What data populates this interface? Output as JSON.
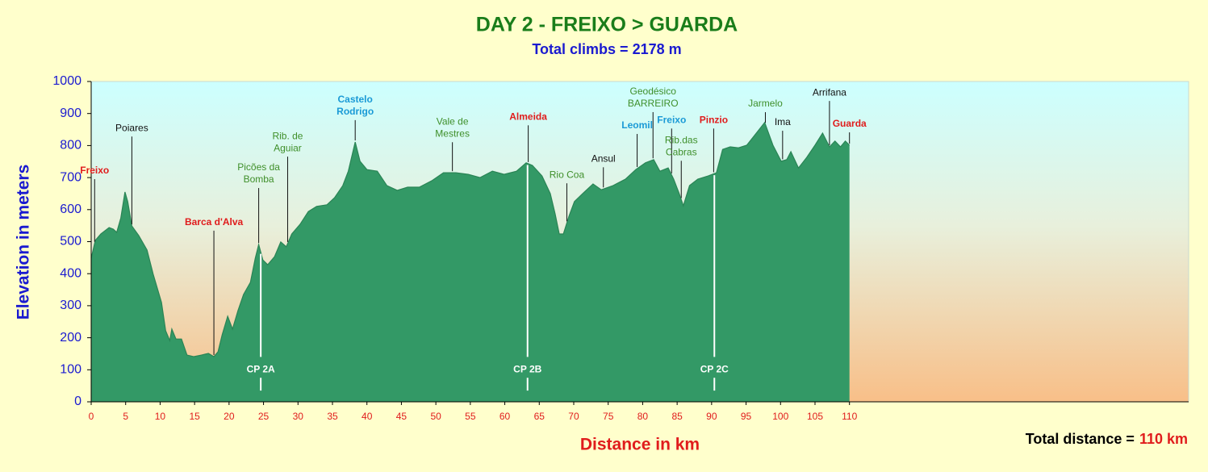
{
  "chart_data": {
    "type": "area",
    "title": "DAY 2 - FREIXO > GUARDA",
    "subtitle": "Total climbs = 2178 m",
    "y_label": "Elevation in meters",
    "x_label": "Distance in km",
    "total_distance_label": "Total distance =",
    "total_distance_value": "110 km",
    "color": "#339966",
    "xlim": [
      0,
      159.2
    ],
    "ylim": [
      0,
      1000
    ],
    "xticks": [
      0,
      5,
      10,
      15,
      20,
      25,
      30,
      35,
      40,
      45,
      50,
      55,
      60,
      65,
      70,
      75,
      80,
      85,
      90,
      95,
      100,
      105,
      110
    ],
    "yticks": [
      0,
      100,
      200,
      300,
      400,
      500,
      600,
      700,
      800,
      900,
      1000
    ],
    "x": [
      0,
      0.6,
      1.4,
      2.6,
      3.2,
      3.7,
      4.3,
      4.9,
      5.3,
      5.9,
      6.9,
      8.1,
      9.0,
      10.2,
      10.8,
      11.4,
      11.7,
      12.3,
      13.1,
      13.9,
      14.9,
      16.0,
      17.0,
      17.8,
      18.4,
      19.0,
      19.8,
      20.5,
      21.3,
      22.1,
      23.1,
      23.8,
      24.3,
      24.9,
      25.6,
      26.6,
      27.5,
      28.3,
      29.1,
      30.3,
      31.5,
      32.7,
      34.2,
      35.3,
      36.5,
      37.3,
      38.3,
      39.0,
      40.0,
      41.5,
      42.9,
      44.4,
      45.9,
      47.6,
      49.4,
      51.1,
      52.9,
      54.7,
      56.4,
      58.2,
      59.9,
      61.7,
      63.1,
      64.0,
      65.4,
      66.6,
      67.3,
      67.9,
      68.5,
      69.3,
      70.1,
      71.3,
      72.8,
      74.0,
      75.7,
      77.5,
      79.0,
      80.4,
      81.6,
      82.5,
      83.7,
      84.5,
      85.3,
      85.9,
      86.8,
      88.0,
      89.5,
      90.7,
      91.6,
      92.7,
      93.9,
      95.1,
      96.2,
      97.7,
      98.9,
      100.1,
      100.9,
      101.5,
      102.6,
      103.8,
      105.0,
      106.1,
      107.1,
      107.9,
      108.7,
      109.4,
      110.0
    ],
    "values": [
      448,
      504,
      524,
      544,
      539,
      529,
      574,
      655,
      625,
      549,
      519,
      474,
      398,
      310,
      222,
      191,
      227,
      196,
      196,
      146,
      141,
      146,
      151,
      141,
      156,
      209,
      267,
      227,
      285,
      335,
      373,
      448,
      491,
      443,
      428,
      453,
      499,
      484,
      524,
      554,
      594,
      610,
      615,
      637,
      675,
      720,
      811,
      751,
      725,
      720,
      675,
      660,
      670,
      670,
      690,
      715,
      715,
      710,
      700,
      720,
      710,
      720,
      746,
      738,
      705,
      650,
      587,
      524,
      524,
      579,
      625,
      650,
      680,
      662,
      675,
      695,
      725,
      746,
      756,
      720,
      730,
      695,
      650,
      612,
      675,
      695,
      705,
      715,
      788,
      796,
      793,
      801,
      831,
      872,
      801,
      751,
      756,
      781,
      730,
      763,
      801,
      839,
      796,
      814,
      796,
      814,
      801
    ],
    "annotations": [
      {
        "lines": [
          "Freixo"
        ],
        "x": 0.5,
        "y": 738,
        "color": "#e01c1c"
      },
      {
        "lines": [
          "Poiares"
        ],
        "x": 5.9,
        "y": 871,
        "color": "#111111"
      },
      {
        "lines": [
          "Barca d'Alva"
        ],
        "x": 17.8,
        "y": 577,
        "color": "#e01c1c"
      },
      {
        "lines": [
          "Picões da",
          "Bomba"
        ],
        "x": 24.3,
        "y": 748,
        "color": "#3f8f2a"
      },
      {
        "lines": [
          "Rib. de",
          "Aguiar"
        ],
        "x": 28.5,
        "y": 846,
        "color": "#3f8f2a"
      },
      {
        "lines": [
          "Castelo",
          "Rodrigo"
        ],
        "x": 38.3,
        "y": 960,
        "color": "#1a9ad6"
      },
      {
        "lines": [
          "Vale de",
          "Mestres"
        ],
        "x": 52.4,
        "y": 891,
        "color": "#3f8f2a"
      },
      {
        "lines": [
          "Almeida"
        ],
        "x": 63.4,
        "y": 906,
        "color": "#e01c1c"
      },
      {
        "lines": [
          "Rio  Coa"
        ],
        "x": 69.0,
        "y": 725,
        "color": "#3f8f2a"
      },
      {
        "lines": [
          "Ansul"
        ],
        "x": 74.3,
        "y": 775,
        "color": "#111111"
      },
      {
        "lines": [
          "Leomil"
        ],
        "x": 79.2,
        "y": 879,
        "color": "#1a9ad6"
      },
      {
        "lines": [
          "Geodésico",
          "BARREIRO"
        ],
        "x": 81.5,
        "y": 985,
        "color": "#3f8f2a"
      },
      {
        "lines": [
          "Freixo"
        ],
        "x": 84.2,
        "y": 896,
        "color": "#1a9ad6"
      },
      {
        "lines": [
          "Rib.das",
          "Cabras"
        ],
        "x": 85.6,
        "y": 833,
        "color": "#3f8f2a"
      },
      {
        "lines": [
          "Pinzio"
        ],
        "x": 90.3,
        "y": 896,
        "color": "#e01c1c"
      },
      {
        "lines": [
          "Jarmelo"
        ],
        "x": 97.8,
        "y": 947,
        "color": "#3f8f2a"
      },
      {
        "lines": [
          "Ima"
        ],
        "x": 100.3,
        "y": 889,
        "color": "#111111"
      },
      {
        "lines": [
          "Arrifana"
        ],
        "x": 107.1,
        "y": 982,
        "color": "#111111"
      },
      {
        "lines": [
          "Guarda"
        ],
        "x": 110.0,
        "y": 884,
        "color": "#e01c1c"
      }
    ],
    "checkpoints": [
      {
        "label": "CP 2A",
        "x": 24.6
      },
      {
        "label": "CP 2B",
        "x": 63.3
      },
      {
        "label": "CP 2C",
        "x": 90.4
      }
    ]
  }
}
